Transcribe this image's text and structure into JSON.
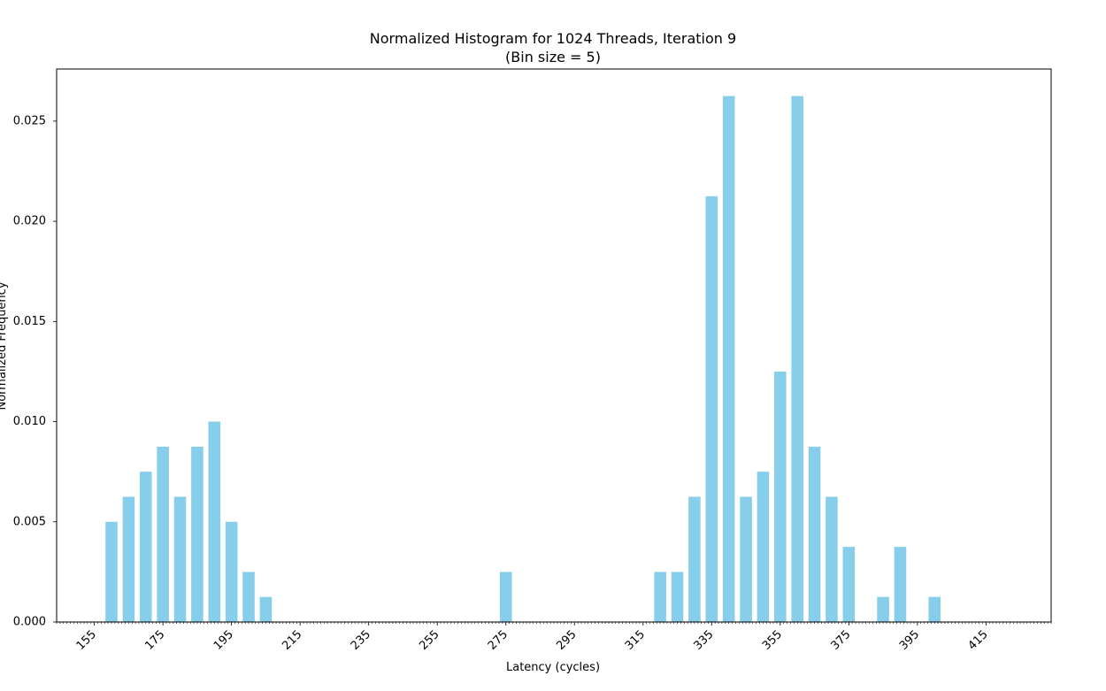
{
  "chart_data": {
    "type": "bar",
    "title": "Normalized Histogram for 1024 Threads, Iteration 9",
    "subtitle": "(Bin size = 5)",
    "xlabel": "Latency (cycles)",
    "ylabel": "Normalized Frequency",
    "bin_size": 5,
    "x": [
      160,
      165,
      170,
      175,
      180,
      185,
      190,
      195,
      200,
      205,
      275,
      320,
      325,
      330,
      335,
      340,
      345,
      350,
      355,
      360,
      365,
      370,
      375,
      385,
      390,
      400
    ],
    "values": [
      0.005,
      0.00625,
      0.0075,
      0.00875,
      0.00625,
      0.00875,
      0.01,
      0.005,
      0.0025,
      0.00125,
      0.0025,
      0.0025,
      0.0025,
      0.00625,
      0.02125,
      0.02625,
      0.00625,
      0.0075,
      0.0125,
      0.02625,
      0.00875,
      0.00625,
      0.00375,
      0.00125,
      0.00375,
      0.00125
    ],
    "xlim": [
      144,
      434
    ],
    "ylim": [
      0,
      0.0276
    ],
    "x_ticks": [
      155,
      175,
      195,
      215,
      235,
      255,
      275,
      295,
      315,
      335,
      355,
      375,
      395,
      415
    ],
    "y_ticks": [
      0.0,
      0.005,
      0.01,
      0.015,
      0.02,
      0.025
    ],
    "y_tick_labels": [
      "0.000",
      "0.005",
      "0.010",
      "0.015",
      "0.020",
      "0.025"
    ],
    "bar_color": "#87ceeb",
    "grid": false,
    "legend": "none"
  }
}
